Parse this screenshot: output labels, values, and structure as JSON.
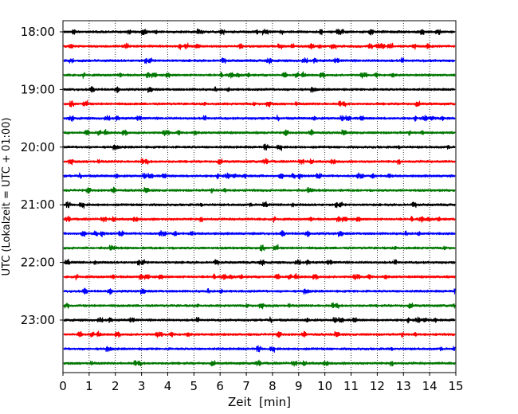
{
  "chart_data": {
    "type": "line",
    "chart_kind": "helicorder",
    "xlabel": "Zeit  [min]",
    "ylabel": "UTC (Lokalzeit = UTC + 01:00)",
    "xlim": [
      0,
      15
    ],
    "x_ticks": [
      0,
      1,
      2,
      3,
      4,
      5,
      6,
      7,
      8,
      9,
      10,
      11,
      12,
      13,
      14,
      15
    ],
    "x_tick_labels": [
      "0",
      "1",
      "2",
      "3",
      "4",
      "5",
      "6",
      "7",
      "8",
      "9",
      "10",
      "11",
      "12",
      "13",
      "14",
      "15"
    ],
    "vertical_grid": "dotted",
    "y_tick_labels": [
      "18:00",
      "19:00",
      "20:00",
      "21:00",
      "22:00",
      "23:00"
    ],
    "trace_minutes": 15,
    "trace_colors": [
      "#000000",
      "#ff0000",
      "#0000ff",
      "#007700"
    ],
    "traces": [
      {
        "start": "18:00"
      },
      {
        "start": "18:15"
      },
      {
        "start": "18:30"
      },
      {
        "start": "18:45"
      },
      {
        "start": "19:00"
      },
      {
        "start": "19:15"
      },
      {
        "start": "19:30"
      },
      {
        "start": "19:45"
      },
      {
        "start": "20:00"
      },
      {
        "start": "20:15"
      },
      {
        "start": "20:30"
      },
      {
        "start": "20:45"
      },
      {
        "start": "21:00"
      },
      {
        "start": "21:15"
      },
      {
        "start": "21:30"
      },
      {
        "start": "21:45"
      },
      {
        "start": "22:00"
      },
      {
        "start": "22:15"
      },
      {
        "start": "22:30"
      },
      {
        "start": "22:45"
      },
      {
        "start": "23:00"
      },
      {
        "start": "23:15"
      },
      {
        "start": "23:30"
      },
      {
        "start": "23:45"
      }
    ]
  }
}
